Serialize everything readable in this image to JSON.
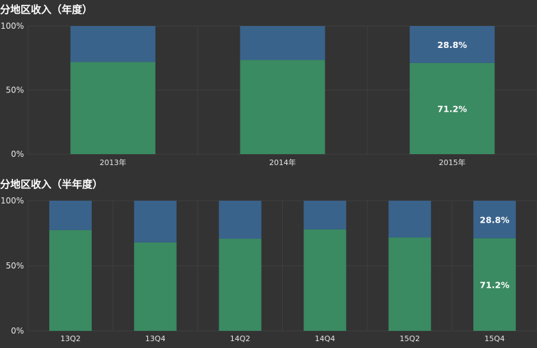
{
  "chart_data": [
    {
      "type": "bar",
      "stacked": true,
      "percent": true,
      "title": "分地区收入（年度）",
      "categories": [
        "2013年",
        "2014年",
        "2015年"
      ],
      "series": [
        {
          "values": [
            72.0,
            73.5,
            71.2
          ],
          "color": "#3a8a62"
        },
        {
          "values": [
            28.0,
            26.5,
            28.8
          ],
          "color": "#3a638c"
        }
      ],
      "yticks": [
        "0%",
        "50%",
        "100%"
      ],
      "ylim": [
        0,
        100
      ],
      "data_labels": [
        {
          "category_index": 2,
          "series_index": 0,
          "text": "71.2%"
        },
        {
          "category_index": 2,
          "series_index": 1,
          "text": "28.8%"
        }
      ],
      "grid": true
    },
    {
      "type": "bar",
      "stacked": true,
      "percent": true,
      "title": "分地区收入（半年度）",
      "categories": [
        "13Q2",
        "13Q4",
        "14Q2",
        "14Q4",
        "15Q2",
        "15Q4"
      ],
      "series": [
        {
          "values": [
            77.5,
            68.0,
            70.8,
            78.0,
            71.8,
            71.2
          ],
          "color": "#3a8a62"
        },
        {
          "values": [
            22.5,
            32.0,
            29.2,
            22.0,
            28.2,
            28.8
          ],
          "color": "#3a638c"
        }
      ],
      "yticks": [
        "0%",
        "50%",
        "100%"
      ],
      "ylim": [
        0,
        100
      ],
      "data_labels": [
        {
          "category_index": 5,
          "series_index": 0,
          "text": "71.2%"
        },
        {
          "category_index": 5,
          "series_index": 1,
          "text": "28.8%"
        }
      ],
      "grid": true
    }
  ]
}
